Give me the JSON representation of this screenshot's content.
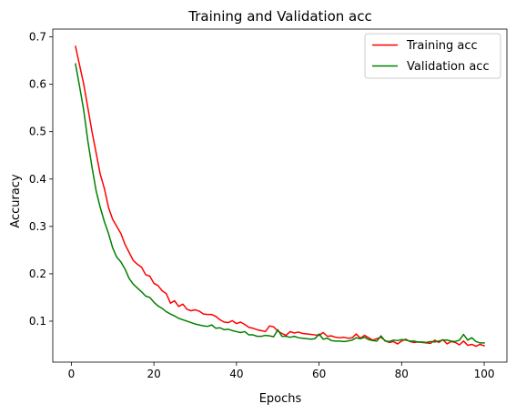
{
  "chart_data": {
    "type": "line",
    "title": "Training and Validation acc",
    "xlabel": "Epochs",
    "ylabel": "Accuracy",
    "xlim": [
      -4.5,
      105.5
    ],
    "ylim": [
      0.0135,
      0.7165
    ],
    "xticks": [
      0,
      20,
      40,
      60,
      80,
      100
    ],
    "yticks": [
      0.1,
      0.2,
      0.3,
      0.4,
      0.5,
      0.6,
      0.7
    ],
    "xtick_labels": [
      "0",
      "20",
      "40",
      "60",
      "80",
      "100"
    ],
    "ytick_labels": [
      "0.1",
      "0.2",
      "0.3",
      "0.4",
      "0.5",
      "0.6",
      "0.7"
    ],
    "grid": false,
    "legend_position": "top-right",
    "series": [
      {
        "name": "Training acc",
        "color": "#ff0000",
        "x": [
          1,
          2,
          3,
          4,
          5,
          6,
          7,
          8,
          9,
          10,
          11,
          12,
          13,
          14,
          15,
          16,
          17,
          18,
          19,
          20,
          21,
          22,
          23,
          24,
          25,
          26,
          27,
          28,
          29,
          30,
          31,
          32,
          33,
          34,
          35,
          36,
          37,
          38,
          39,
          40,
          41,
          42,
          43,
          44,
          45,
          46,
          47,
          48,
          49,
          50,
          51,
          52,
          53,
          54,
          55,
          56,
          57,
          58,
          59,
          60,
          61,
          62,
          63,
          64,
          65,
          66,
          67,
          68,
          69,
          70,
          71,
          72,
          73,
          74,
          75,
          76,
          77,
          78,
          79,
          80,
          81,
          82,
          83,
          84,
          85,
          86,
          87,
          88,
          89,
          90,
          91,
          92,
          93,
          94,
          95,
          96,
          97,
          98,
          99,
          100
        ],
        "values": [
          0.68,
          0.64,
          0.6,
          0.55,
          0.5,
          0.455,
          0.41,
          0.38,
          0.34,
          0.315,
          0.3,
          0.285,
          0.262,
          0.245,
          0.228,
          0.22,
          0.214,
          0.198,
          0.195,
          0.18,
          0.175,
          0.164,
          0.158,
          0.138,
          0.143,
          0.131,
          0.136,
          0.125,
          0.122,
          0.124,
          0.121,
          0.115,
          0.114,
          0.114,
          0.11,
          0.103,
          0.098,
          0.097,
          0.101,
          0.095,
          0.098,
          0.093,
          0.087,
          0.085,
          0.082,
          0.08,
          0.078,
          0.09,
          0.088,
          0.079,
          0.074,
          0.07,
          0.078,
          0.075,
          0.077,
          0.074,
          0.073,
          0.072,
          0.071,
          0.07,
          0.076,
          0.068,
          0.069,
          0.066,
          0.065,
          0.066,
          0.064,
          0.065,
          0.073,
          0.064,
          0.07,
          0.065,
          0.06,
          0.063,
          0.066,
          0.059,
          0.055,
          0.057,
          0.052,
          0.058,
          0.062,
          0.057,
          0.055,
          0.056,
          0.055,
          0.054,
          0.053,
          0.06,
          0.055,
          0.061,
          0.052,
          0.057,
          0.055,
          0.05,
          0.058,
          0.049,
          0.051,
          0.047,
          0.051,
          0.048
        ]
      },
      {
        "name": "Validation acc",
        "color": "#008000",
        "x": [
          1,
          2,
          3,
          4,
          5,
          6,
          7,
          8,
          9,
          10,
          11,
          12,
          13,
          14,
          15,
          16,
          17,
          18,
          19,
          20,
          21,
          22,
          23,
          24,
          25,
          26,
          27,
          28,
          29,
          30,
          31,
          32,
          33,
          34,
          35,
          36,
          37,
          38,
          39,
          40,
          41,
          42,
          43,
          44,
          45,
          46,
          47,
          48,
          49,
          50,
          51,
          52,
          53,
          54,
          55,
          56,
          57,
          58,
          59,
          60,
          61,
          62,
          63,
          64,
          65,
          66,
          67,
          68,
          69,
          70,
          71,
          72,
          73,
          74,
          75,
          76,
          77,
          78,
          79,
          80,
          81,
          82,
          83,
          84,
          85,
          86,
          87,
          88,
          89,
          90,
          91,
          92,
          93,
          94,
          95,
          96,
          97,
          98,
          99,
          100
        ],
        "values": [
          0.643,
          0.595,
          0.545,
          0.48,
          0.425,
          0.375,
          0.34,
          0.31,
          0.285,
          0.255,
          0.235,
          0.225,
          0.21,
          0.19,
          0.178,
          0.17,
          0.162,
          0.153,
          0.15,
          0.14,
          0.132,
          0.127,
          0.12,
          0.115,
          0.111,
          0.106,
          0.103,
          0.1,
          0.097,
          0.094,
          0.092,
          0.09,
          0.089,
          0.092,
          0.085,
          0.086,
          0.082,
          0.083,
          0.08,
          0.078,
          0.076,
          0.078,
          0.071,
          0.071,
          0.068,
          0.068,
          0.07,
          0.069,
          0.067,
          0.082,
          0.068,
          0.068,
          0.066,
          0.068,
          0.065,
          0.064,
          0.063,
          0.062,
          0.063,
          0.073,
          0.062,
          0.064,
          0.059,
          0.058,
          0.058,
          0.057,
          0.058,
          0.06,
          0.065,
          0.063,
          0.066,
          0.061,
          0.059,
          0.058,
          0.069,
          0.058,
          0.057,
          0.06,
          0.059,
          0.061,
          0.06,
          0.058,
          0.058,
          0.056,
          0.056,
          0.055,
          0.057,
          0.056,
          0.058,
          0.06,
          0.06,
          0.058,
          0.057,
          0.06,
          0.072,
          0.06,
          0.065,
          0.057,
          0.054,
          0.054
        ]
      }
    ]
  }
}
